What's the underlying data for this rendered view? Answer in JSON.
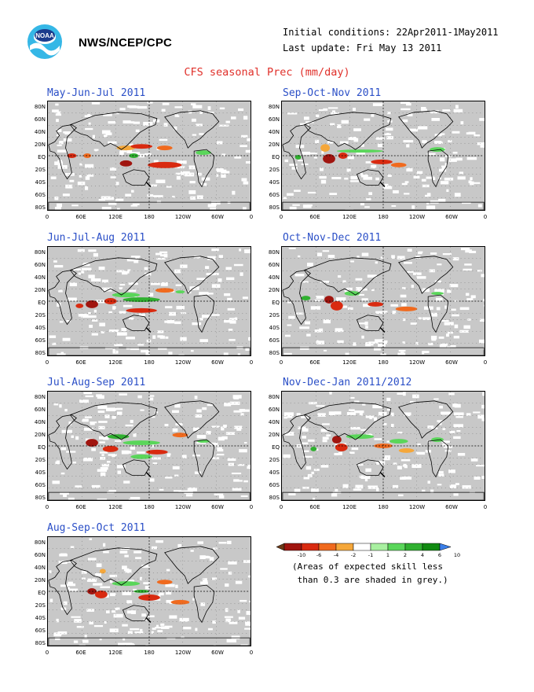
{
  "header": {
    "org": "NWS/NCEP/CPC",
    "logo_text": "NOAA",
    "initial_conditions": "Initial conditions: 22Apr2011-1May2011",
    "last_update": "Last update: Fri May 13 2011"
  },
  "title": "CFS seasonal Prec (mm/day)",
  "lat_labels": [
    "80N",
    "60N",
    "40N",
    "20N",
    "EQ",
    "20S",
    "40S",
    "60S",
    "80S"
  ],
  "lon_labels": [
    "0",
    "60E",
    "120E",
    "180",
    "120W",
    "60W",
    "0"
  ],
  "panels": [
    {
      "title": "May-Jun-Jul 2011"
    },
    {
      "title": "Sep-Oct-Nov 2011"
    },
    {
      "title": "Jun-Jul-Aug 2011"
    },
    {
      "title": "Oct-Nov-Dec 2011"
    },
    {
      "title": "Jul-Aug-Sep 2011"
    },
    {
      "title": "Nov-Dec-Jan 2011/2012"
    },
    {
      "title": "Aug-Sep-Oct 2011"
    }
  ],
  "legend": {
    "ticks": [
      "-10",
      "-6",
      "-4",
      "-2",
      "-1",
      "1",
      "2",
      "4",
      "6",
      "10"
    ],
    "colors": [
      "#6b3a17",
      "#a0150f",
      "#d92a10",
      "#f06a1e",
      "#f5a73a",
      "#ffffff",
      "#a8f0a0",
      "#5ad65a",
      "#30b030",
      "#118a11",
      "#3a7ee8"
    ],
    "note_line1": "(Areas of expected skill less",
    "note_line2": " than 0.3 are shaded in grey.)"
  }
}
